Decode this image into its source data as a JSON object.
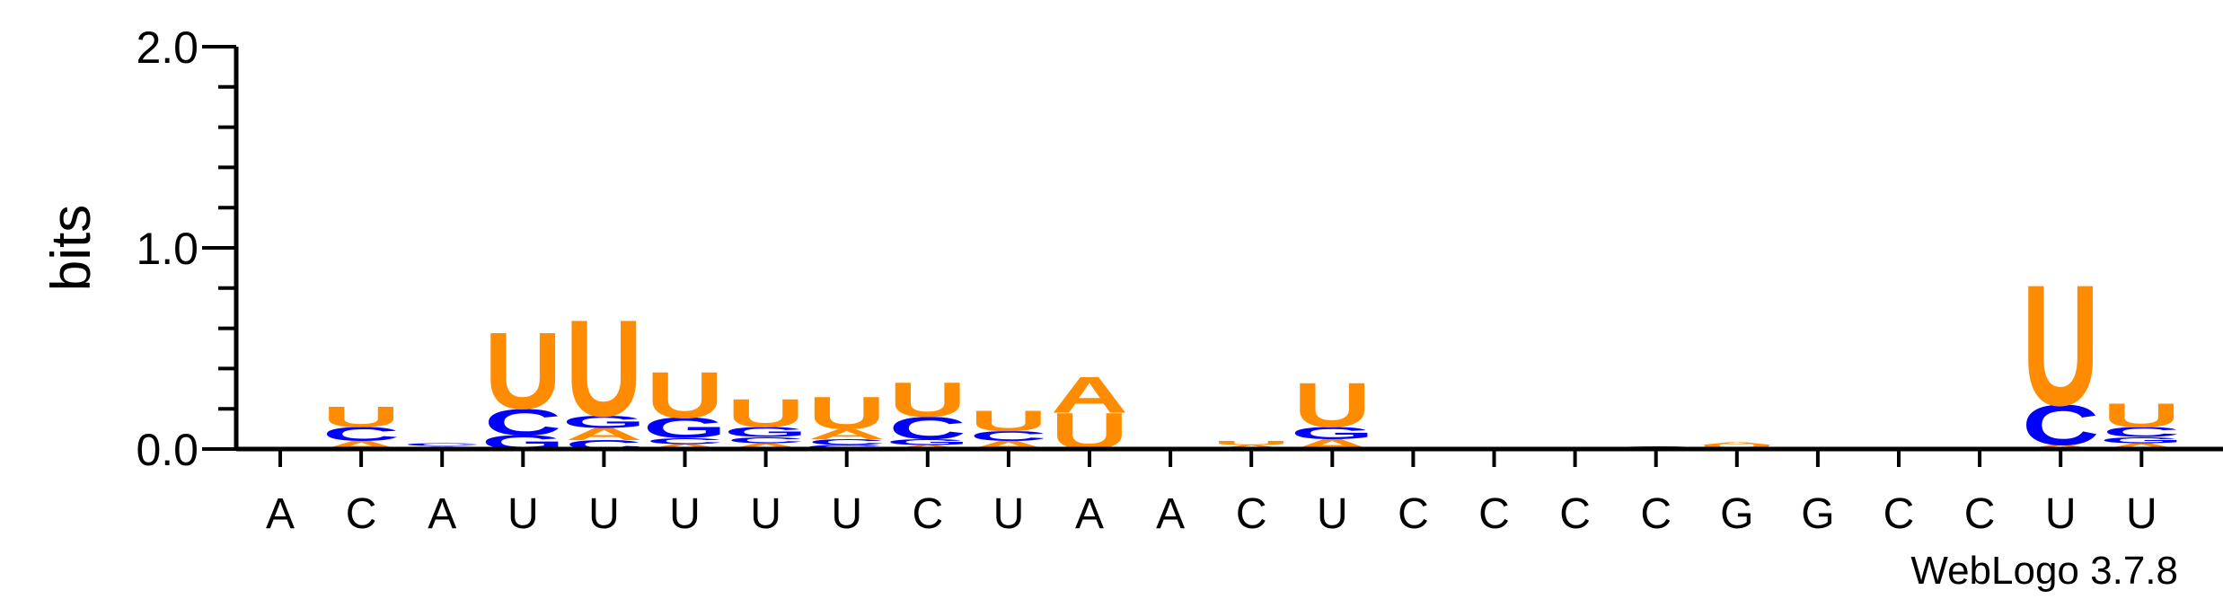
{
  "chart_data": {
    "type": "sequence-logo",
    "ylabel": "bits",
    "ylim": [
      0,
      2.0
    ],
    "yticks": [
      "0.0",
      "1.0",
      "2.0"
    ],
    "y_major_ticks": [
      0,
      1.0,
      2.0
    ],
    "y_minor_step": 0.2,
    "credit": "WebLogo 3.7.8",
    "colors": {
      "A": "#ff8c00",
      "U": "#ff8c00",
      "C": "#0000ff",
      "G": "#0000ff"
    },
    "positions": [
      {
        "label": "A",
        "stack": []
      },
      {
        "label": "C",
        "stack": [
          [
            "A",
            0.04
          ],
          [
            "C",
            0.07
          ],
          [
            "U",
            0.1
          ]
        ]
      },
      {
        "label": "A",
        "stack": [
          [
            "A",
            0.015
          ],
          [
            "C",
            0.015
          ]
        ]
      },
      {
        "label": "U",
        "stack": [
          [
            "G",
            0.07
          ],
          [
            "C",
            0.13
          ],
          [
            "U",
            0.38
          ]
        ]
      },
      {
        "label": "U",
        "stack": [
          [
            "C",
            0.045
          ],
          [
            "A",
            0.06
          ],
          [
            "G",
            0.06
          ],
          [
            "U",
            0.48
          ]
        ]
      },
      {
        "label": "U",
        "stack": [
          [
            "A",
            0.025
          ],
          [
            "C",
            0.03
          ],
          [
            "G",
            0.1
          ],
          [
            "U",
            0.23
          ]
        ]
      },
      {
        "label": "U",
        "stack": [
          [
            "A",
            0.03
          ],
          [
            "C",
            0.03
          ],
          [
            "G",
            0.05
          ],
          [
            "U",
            0.14
          ]
        ]
      },
      {
        "label": "U",
        "stack": [
          [
            "G",
            0.02
          ],
          [
            "C",
            0.03
          ],
          [
            "A",
            0.05
          ],
          [
            "U",
            0.16
          ]
        ]
      },
      {
        "label": "C",
        "stack": [
          [
            "A",
            0.02
          ],
          [
            "G",
            0.03
          ],
          [
            "C",
            0.11
          ],
          [
            "U",
            0.17
          ]
        ]
      },
      {
        "label": "U",
        "stack": [
          [
            "A",
            0.04
          ],
          [
            "C",
            0.05
          ],
          [
            "U",
            0.1
          ]
        ]
      },
      {
        "label": "A",
        "stack": [
          [
            "U",
            0.18
          ],
          [
            "A",
            0.18
          ]
        ]
      },
      {
        "label": "A",
        "stack": []
      },
      {
        "label": "C",
        "stack": [
          [
            "A",
            0.02
          ],
          [
            "U",
            0.02
          ]
        ]
      },
      {
        "label": "U",
        "stack": [
          [
            "A",
            0.05
          ],
          [
            "G",
            0.06
          ],
          [
            "U",
            0.22
          ]
        ]
      },
      {
        "label": "C",
        "stack": []
      },
      {
        "label": "C",
        "stack": []
      },
      {
        "label": "C",
        "stack": []
      },
      {
        "label": "C",
        "stack": [
          [
            "C",
            0.015
          ]
        ]
      },
      {
        "label": "G",
        "stack": [
          [
            "G",
            0.01
          ],
          [
            "U",
            0.01
          ],
          [
            "A",
            0.015
          ]
        ]
      },
      {
        "label": "G",
        "stack": [
          [
            "C",
            0.01
          ]
        ]
      },
      {
        "label": "C",
        "stack": [
          [
            "C",
            0.01
          ]
        ]
      },
      {
        "label": "C",
        "stack": [
          [
            "C",
            0.01
          ]
        ]
      },
      {
        "label": "U",
        "stack": [
          [
            "A",
            0.02
          ],
          [
            "C",
            0.2
          ],
          [
            "U",
            0.6
          ]
        ]
      },
      {
        "label": "U",
        "stack": [
          [
            "A",
            0.03
          ],
          [
            "G",
            0.03
          ],
          [
            "C",
            0.05
          ],
          [
            "U",
            0.12
          ]
        ]
      }
    ]
  }
}
